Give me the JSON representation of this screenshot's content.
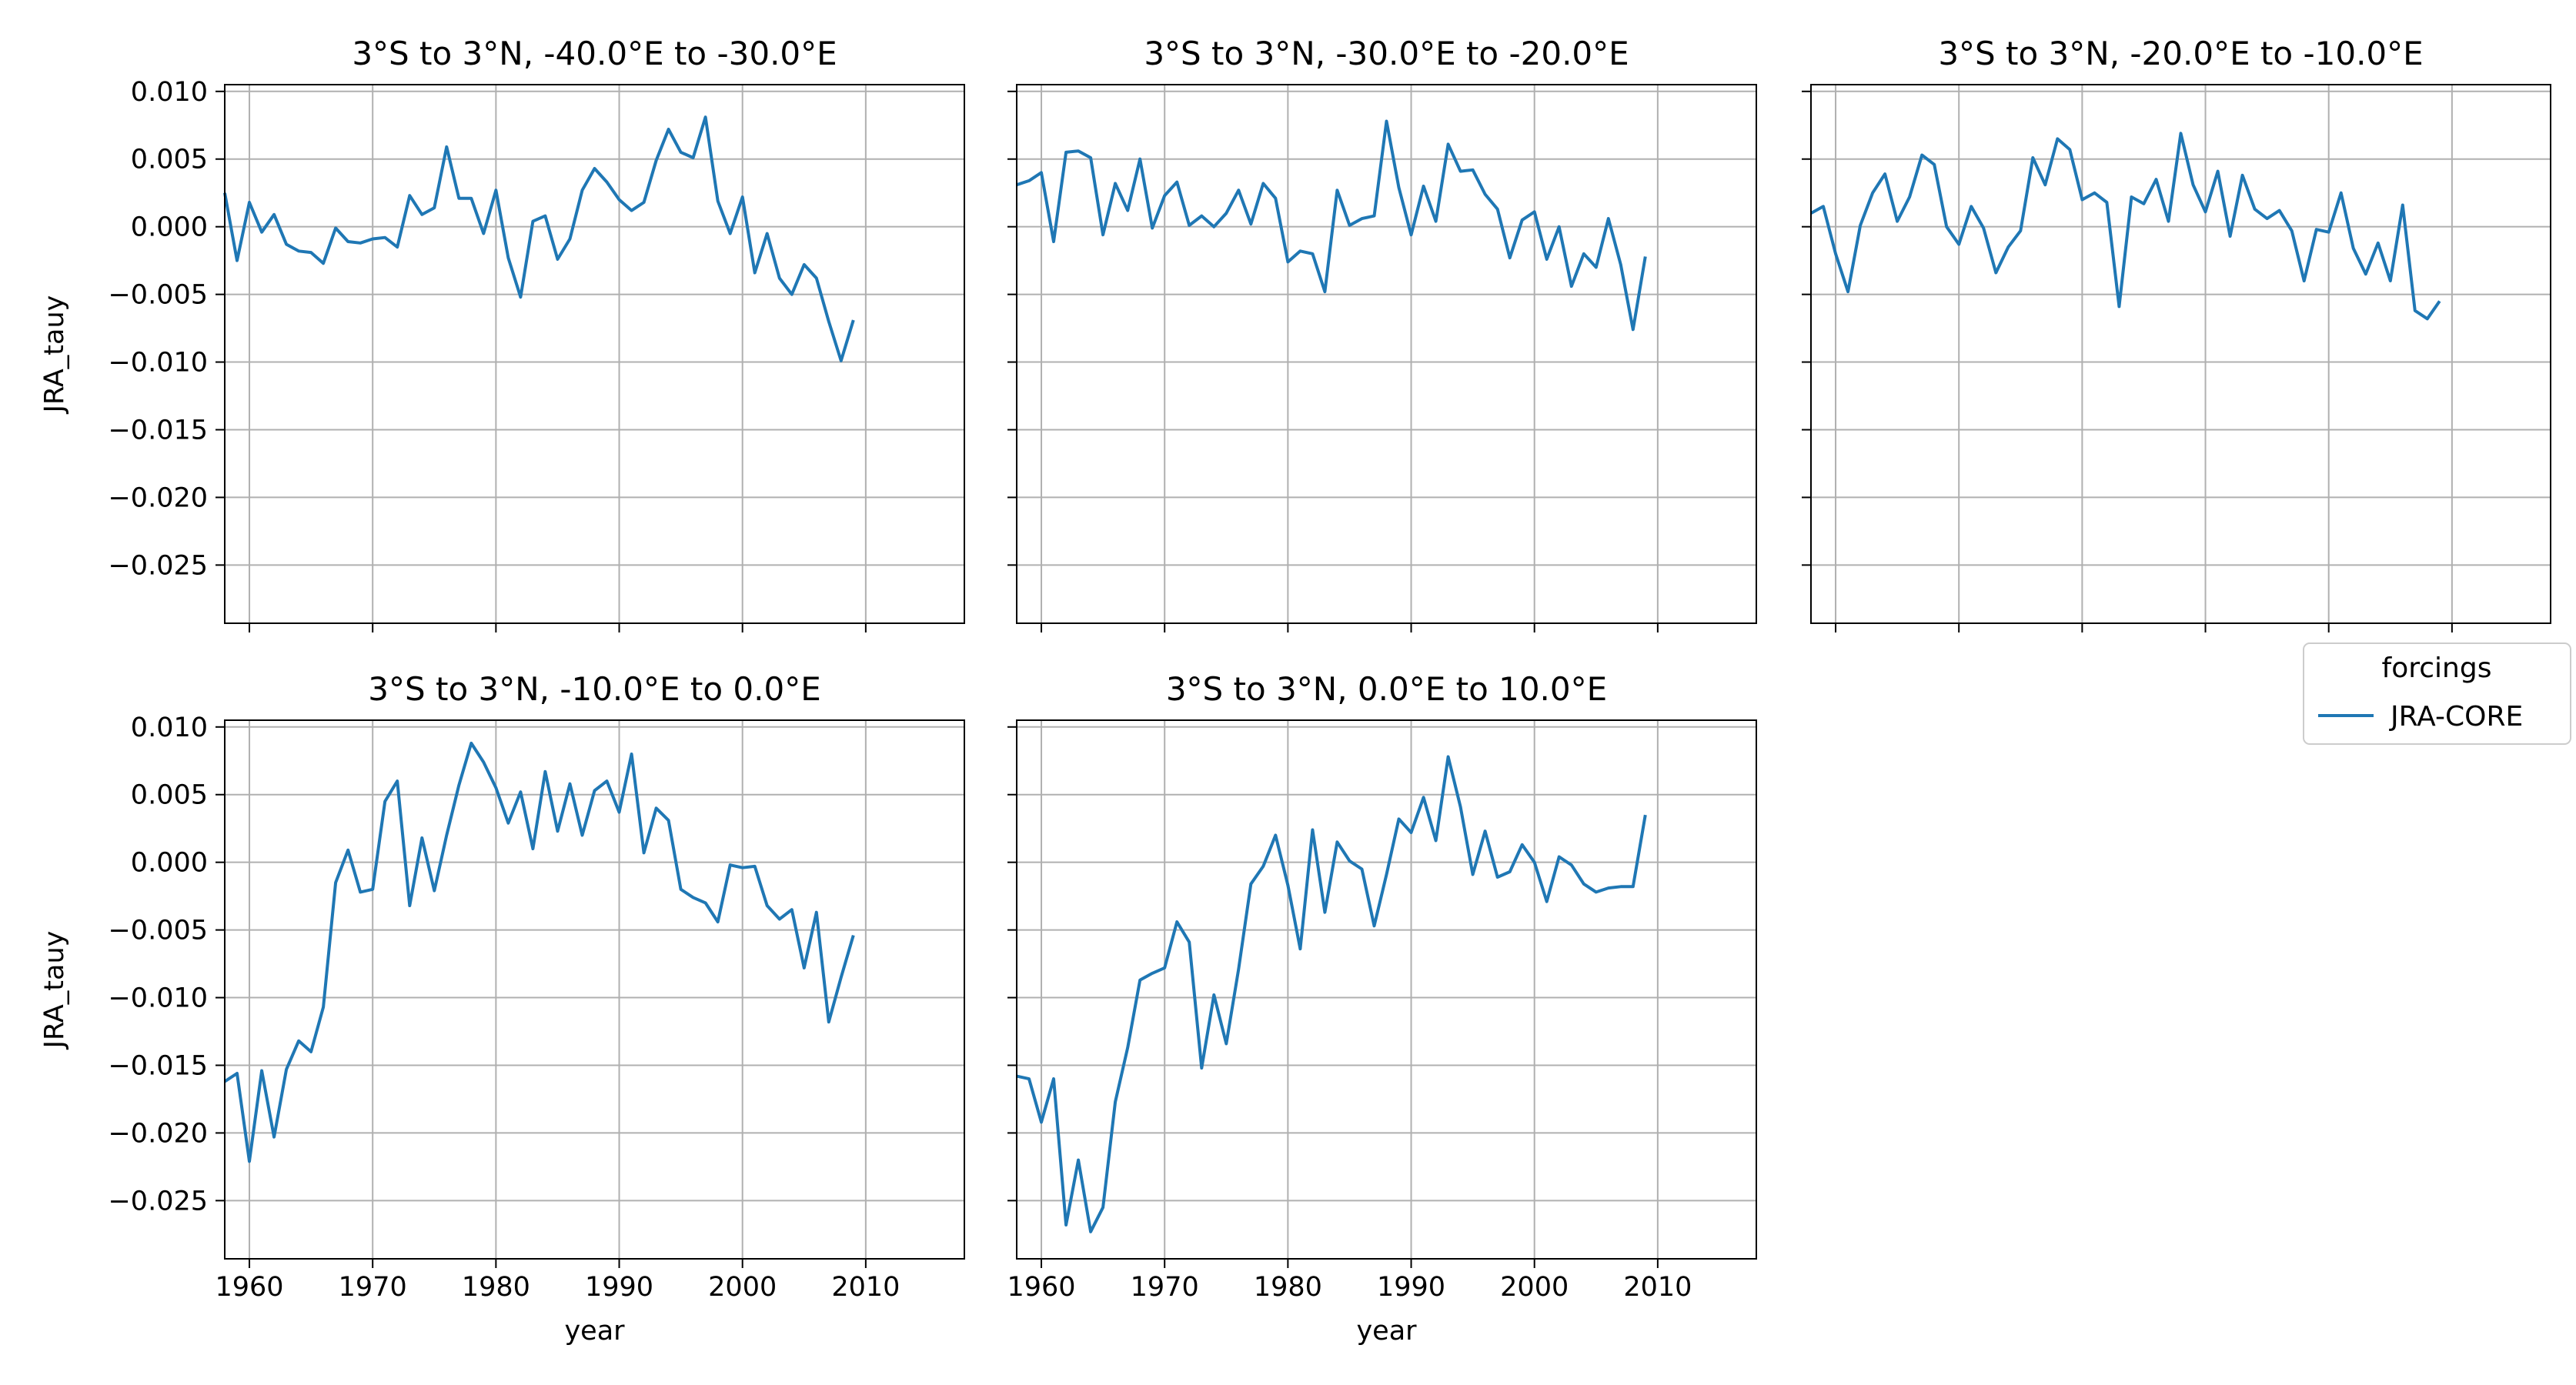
{
  "figure": {
    "legend": {
      "title": "forcings",
      "entries": [
        {
          "label": "JRA-CORE",
          "color": "#1f77b4"
        }
      ],
      "placement": "right-middle"
    }
  },
  "chart_data": [
    {
      "type": "line",
      "title": "3°S to 3°N, -40.0°E to -30.0°E",
      "xlabel": "",
      "ylabel": "JRA_tauy",
      "xlim": [
        1958,
        2018
      ],
      "ylim": [
        -0.0293,
        0.0105
      ],
      "xticks": [
        1960,
        1970,
        1980,
        1990,
        2000,
        2010
      ],
      "xtick_labels_visible": false,
      "yticks": [
        0.01,
        0.005,
        0.0,
        -0.005,
        -0.01,
        -0.015,
        -0.02,
        -0.025
      ],
      "ytick_labels": [
        "0.010",
        "0.005",
        "0.000",
        "−0.005",
        "−0.010",
        "−0.015",
        "−0.020",
        "−0.025"
      ],
      "ytick_labels_visible": true,
      "grid": true,
      "series": [
        {
          "name": "JRA-CORE",
          "color": "#1f77b4",
          "x": [
            1958,
            1959,
            1960,
            1961,
            1962,
            1963,
            1964,
            1965,
            1966,
            1967,
            1968,
            1969,
            1970,
            1971,
            1972,
            1973,
            1974,
            1975,
            1976,
            1977,
            1978,
            1979,
            1980,
            1981,
            1982,
            1983,
            1984,
            1985,
            1986,
            1987,
            1988,
            1989,
            1990,
            1991,
            1992,
            1993,
            1994,
            1995,
            1996,
            1997,
            1998,
            1999,
            2000,
            2001,
            2002,
            2003,
            2004,
            2005,
            2006,
            2007,
            2008,
            2009
          ],
          "values": [
            0.0025,
            -0.0025,
            0.0018,
            -0.0004,
            0.0009,
            -0.0013,
            -0.0018,
            -0.0019,
            -0.0027,
            -0.0001,
            -0.0011,
            -0.0012,
            -0.0009,
            -0.0008,
            -0.0015,
            0.0023,
            0.0009,
            0.0014,
            0.0059,
            0.0021,
            0.0021,
            -0.0005,
            0.0027,
            -0.0023,
            -0.0052,
            0.0004,
            0.0008,
            -0.0024,
            -0.0009,
            0.0027,
            0.0043,
            0.0033,
            0.002,
            0.0012,
            0.0018,
            0.0049,
            0.0072,
            0.0055,
            0.0051,
            0.0081,
            0.0019,
            -0.0005,
            0.0022,
            -0.0034,
            -0.0005,
            -0.0038,
            -0.005,
            -0.0028,
            -0.0038,
            -0.007,
            -0.0099,
            -0.0069
          ]
        }
      ]
    },
    {
      "type": "line",
      "title": "3°S to 3°N, -30.0°E to -20.0°E",
      "xlabel": "",
      "ylabel": "",
      "xlim": [
        1958,
        2018
      ],
      "ylim": [
        -0.0293,
        0.0105
      ],
      "xticks": [
        1960,
        1970,
        1980,
        1990,
        2000,
        2010
      ],
      "xtick_labels_visible": false,
      "yticks": [
        0.01,
        0.005,
        0.0,
        -0.005,
        -0.01,
        -0.015,
        -0.02,
        -0.025
      ],
      "ytick_labels_visible": false,
      "grid": true,
      "series": [
        {
          "name": "JRA-CORE",
          "color": "#1f77b4",
          "x": [
            1958,
            1959,
            1960,
            1961,
            1962,
            1963,
            1964,
            1965,
            1966,
            1967,
            1968,
            1969,
            1970,
            1971,
            1972,
            1973,
            1974,
            1975,
            1976,
            1977,
            1978,
            1979,
            1980,
            1981,
            1982,
            1983,
            1984,
            1985,
            1986,
            1987,
            1988,
            1989,
            1990,
            1991,
            1992,
            1993,
            1994,
            1995,
            1996,
            1997,
            1998,
            1999,
            2000,
            2001,
            2002,
            2003,
            2004,
            2005,
            2006,
            2007,
            2008,
            2009
          ],
          "values": [
            0.0031,
            0.0034,
            0.004,
            -0.0011,
            0.0055,
            0.0056,
            0.0051,
            -0.0006,
            0.0032,
            0.0012,
            0.005,
            -0.0001,
            0.0023,
            0.0033,
            0.0001,
            0.0008,
            0.0,
            0.001,
            0.0027,
            0.0002,
            0.0032,
            0.0021,
            -0.0026,
            -0.0018,
            -0.002,
            -0.0048,
            0.0027,
            0.0001,
            0.0006,
            0.0008,
            0.0078,
            0.0029,
            -0.0006,
            0.003,
            0.0004,
            0.0061,
            0.0041,
            0.0042,
            0.0024,
            0.0013,
            -0.0023,
            0.0005,
            0.0011,
            -0.0024,
            0.0,
            -0.0044,
            -0.002,
            -0.003,
            0.0006,
            -0.0028,
            -0.0076,
            -0.0022
          ]
        }
      ]
    },
    {
      "type": "line",
      "title": "3°S to 3°N, -20.0°E to -10.0°E",
      "xlabel": "",
      "ylabel": "",
      "xlim": [
        1958,
        2018
      ],
      "ylim": [
        -0.0293,
        0.0105
      ],
      "xticks": [
        1960,
        1970,
        1980,
        1990,
        2000,
        2010
      ],
      "xtick_labels_visible": false,
      "yticks": [
        0.01,
        0.005,
        0.0,
        -0.005,
        -0.01,
        -0.015,
        -0.02,
        -0.025
      ],
      "ytick_labels_visible": false,
      "grid": true,
      "series": [
        {
          "name": "JRA-CORE",
          "color": "#1f77b4",
          "x": [
            1958,
            1959,
            1960,
            1961,
            1962,
            1963,
            1964,
            1965,
            1966,
            1967,
            1968,
            1969,
            1970,
            1971,
            1972,
            1973,
            1974,
            1975,
            1976,
            1977,
            1978,
            1979,
            1980,
            1981,
            1982,
            1983,
            1984,
            1985,
            1986,
            1987,
            1988,
            1989,
            1990,
            1991,
            1992,
            1993,
            1994,
            1995,
            1996,
            1997,
            1998,
            1999,
            2000,
            2001,
            2002,
            2003,
            2004,
            2005,
            2006,
            2007,
            2008,
            2009
          ],
          "values": [
            0.001,
            0.0015,
            -0.002,
            -0.0048,
            0.0001,
            0.0025,
            0.0039,
            0.0004,
            0.0022,
            0.0053,
            0.0046,
            0.0,
            -0.0013,
            0.0015,
            -0.0001,
            -0.0034,
            -0.0015,
            -0.0003,
            0.0051,
            0.0031,
            0.0065,
            0.0057,
            0.002,
            0.0025,
            0.0018,
            -0.0059,
            0.0022,
            0.0017,
            0.0035,
            0.0004,
            0.0069,
            0.0031,
            0.0011,
            0.0041,
            -0.0007,
            0.0038,
            0.0013,
            0.0006,
            0.0012,
            -0.0003,
            -0.004,
            -0.0002,
            -0.0004,
            0.0025,
            -0.0016,
            -0.0035,
            -0.0012,
            -0.004,
            0.0016,
            -0.0062,
            -0.0068,
            -0.0055
          ]
        }
      ]
    },
    {
      "type": "line",
      "title": "3°S to 3°N, -10.0°E to 0.0°E",
      "xlabel": "year",
      "ylabel": "JRA_tauy",
      "xlim": [
        1958,
        2018
      ],
      "ylim": [
        -0.0293,
        0.0105
      ],
      "xticks": [
        1960,
        1970,
        1980,
        1990,
        2000,
        2010
      ],
      "xtick_labels": [
        "1960",
        "1970",
        "1980",
        "1990",
        "2000",
        "2010"
      ],
      "xtick_labels_visible": true,
      "yticks": [
        0.01,
        0.005,
        0.0,
        -0.005,
        -0.01,
        -0.015,
        -0.02,
        -0.025
      ],
      "ytick_labels": [
        "0.010",
        "0.005",
        "0.000",
        "−0.005",
        "−0.010",
        "−0.015",
        "−0.020",
        "−0.025"
      ],
      "ytick_labels_visible": true,
      "grid": true,
      "series": [
        {
          "name": "JRA-CORE",
          "color": "#1f77b4",
          "x": [
            1958,
            1959,
            1960,
            1961,
            1962,
            1963,
            1964,
            1965,
            1966,
            1967,
            1968,
            1969,
            1970,
            1971,
            1972,
            1973,
            1974,
            1975,
            1976,
            1977,
            1978,
            1979,
            1980,
            1981,
            1982,
            1983,
            1984,
            1985,
            1986,
            1987,
            1988,
            1989,
            1990,
            1991,
            1992,
            1993,
            1994,
            1995,
            1996,
            1997,
            1998,
            1999,
            2000,
            2001,
            2002,
            2003,
            2004,
            2005,
            2006,
            2007,
            2008,
            2009
          ],
          "values": [
            -0.0162,
            -0.0156,
            -0.0221,
            -0.0154,
            -0.0203,
            -0.0153,
            -0.0132,
            -0.014,
            -0.0107,
            -0.0015,
            0.0009,
            -0.0022,
            -0.002,
            0.0045,
            0.006,
            -0.0032,
            0.0018,
            -0.0021,
            0.002,
            0.0057,
            0.0088,
            0.0074,
            0.0055,
            0.0029,
            0.0052,
            0.001,
            0.0067,
            0.0023,
            0.0058,
            0.002,
            0.0053,
            0.006,
            0.0037,
            0.008,
            0.0007,
            0.004,
            0.0031,
            -0.002,
            -0.0026,
            -0.003,
            -0.0044,
            -0.0002,
            -0.0004,
            -0.0003,
            -0.0032,
            -0.0042,
            -0.0035,
            -0.0078,
            -0.0037,
            -0.0118,
            -0.0085,
            -0.0054
          ]
        }
      ]
    },
    {
      "type": "line",
      "title": "3°S to 3°N, 0.0°E to 10.0°E",
      "xlabel": "year",
      "ylabel": "",
      "xlim": [
        1958,
        2018
      ],
      "ylim": [
        -0.0293,
        0.0105
      ],
      "xticks": [
        1960,
        1970,
        1980,
        1990,
        2000,
        2010
      ],
      "xtick_labels": [
        "1960",
        "1970",
        "1980",
        "1990",
        "2000",
        "2010"
      ],
      "xtick_labels_visible": true,
      "yticks": [
        0.01,
        0.005,
        0.0,
        -0.005,
        -0.01,
        -0.015,
        -0.02,
        -0.025
      ],
      "ytick_labels_visible": false,
      "grid": true,
      "series": [
        {
          "name": "JRA-CORE",
          "color": "#1f77b4",
          "x": [
            1958,
            1959,
            1960,
            1961,
            1962,
            1963,
            1964,
            1965,
            1966,
            1967,
            1968,
            1969,
            1970,
            1971,
            1972,
            1973,
            1974,
            1975,
            1976,
            1977,
            1978,
            1979,
            1980,
            1981,
            1982,
            1983,
            1984,
            1985,
            1986,
            1987,
            1988,
            1989,
            1990,
            1991,
            1992,
            1993,
            1994,
            1995,
            1996,
            1997,
            1998,
            1999,
            2000,
            2001,
            2002,
            2003,
            2004,
            2005,
            2006,
            2007,
            2008,
            2009
          ],
          "values": [
            -0.0158,
            -0.016,
            -0.0192,
            -0.016,
            -0.0268,
            -0.022,
            -0.0273,
            -0.0255,
            -0.0177,
            -0.0137,
            -0.0087,
            -0.0082,
            -0.0078,
            -0.0044,
            -0.0059,
            -0.0152,
            -0.0098,
            -0.0134,
            -0.0079,
            -0.0016,
            -0.0003,
            0.002,
            -0.0017,
            -0.0064,
            0.0024,
            -0.0037,
            0.0015,
            0.0001,
            -0.0005,
            -0.0047,
            -0.0009,
            0.0032,
            0.0022,
            0.0048,
            0.0016,
            0.0078,
            0.0041,
            -0.0009,
            0.0023,
            -0.0011,
            -0.0007,
            0.0013,
            0.0,
            -0.0029,
            0.0004,
            -0.0002,
            -0.0016,
            -0.0022,
            -0.0019,
            -0.0018,
            -0.0018,
            0.0035
          ]
        }
      ]
    }
  ]
}
